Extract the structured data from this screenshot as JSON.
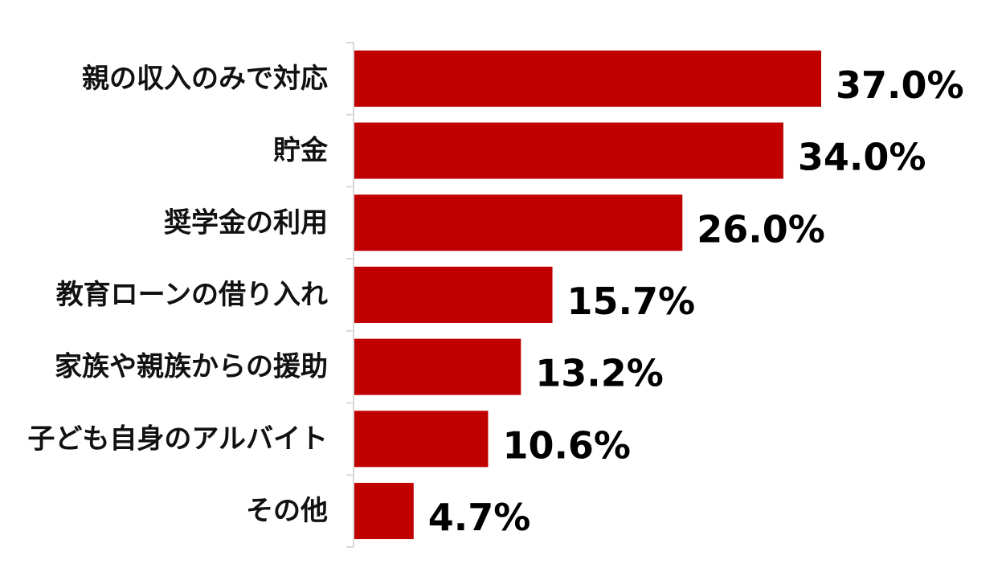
{
  "chart_data": {
    "type": "bar",
    "orientation": "horizontal",
    "categories": [
      "親の収入のみで対応",
      "貯金",
      "奨学金の利用",
      "教育ローンの借り入れ",
      "家族や親族からの援助",
      "子ども自身のアルバイト",
      "その他"
    ],
    "values": [
      37.0,
      34.0,
      26.0,
      15.7,
      13.2,
      10.6,
      4.7
    ],
    "value_labels": [
      "37.0%",
      "34.0%",
      "26.0%",
      "15.7%",
      "13.2%",
      "10.6%",
      "4.7%"
    ],
    "unit": "%",
    "xlim": [
      0,
      50
    ],
    "grid": false,
    "legend": "none",
    "colors": {
      "bar": "#c00000",
      "axis": "#d9d9d9",
      "text": "#000000"
    }
  }
}
